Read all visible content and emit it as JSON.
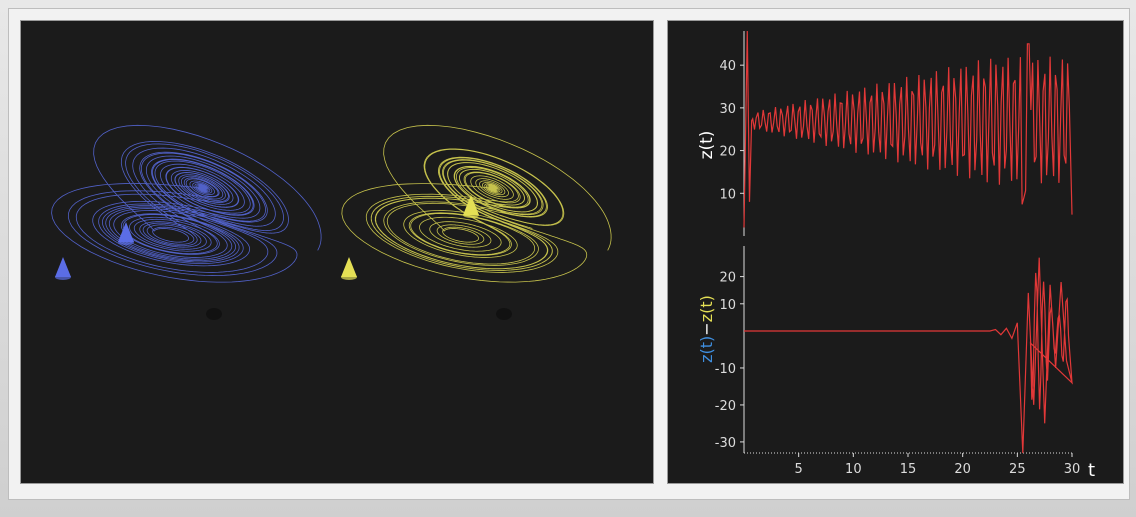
{
  "chart_data": [
    {
      "type": "scatter",
      "description_free": true,
      "series": [
        {
          "color": "#5e70e8"
        },
        {
          "color": "#e8e25a"
        }
      ]
    },
    {
      "type": "line",
      "ylabel": "z(t)",
      "xlim": [
        0,
        30
      ],
      "ylim": [
        0,
        48
      ],
      "yticks": [
        "10",
        "20",
        "30",
        "40"
      ],
      "series": [
        {
          "color": "#e23a3a",
          "x": [
            0,
            0.3,
            0.5,
            1,
            2,
            3,
            4,
            5,
            6,
            7,
            8,
            9,
            10,
            11,
            12,
            13,
            14,
            15,
            16,
            17,
            18,
            19,
            20,
            21,
            22,
            23,
            24,
            25,
            25.5,
            26,
            27,
            28,
            29,
            30
          ],
          "values": [
            2,
            48,
            27,
            28,
            26,
            29,
            27,
            30,
            26,
            31,
            25,
            32,
            24,
            33,
            23,
            35,
            21,
            37,
            19,
            39,
            17,
            40,
            15,
            42,
            13,
            41,
            14,
            44,
            6,
            38,
            12,
            40,
            10,
            5
          ]
        }
      ]
    },
    {
      "type": "line",
      "ylabel": "z(t)−z(t)",
      "xlabel": "t",
      "xlim": [
        0,
        30
      ],
      "ylim": [
        -33,
        30
      ],
      "xticks": [
        "5",
        "10",
        "15",
        "20",
        "25",
        "30"
      ],
      "yticks": [
        "20",
        "10",
        "-10",
        "-20",
        "-30"
      ],
      "series": [
        {
          "color": "#e23a3a",
          "x": [
            0,
            5,
            10,
            15,
            20,
            22,
            23,
            23.5,
            24,
            24.5,
            25,
            25.5,
            26,
            26.5,
            27,
            27.5,
            28,
            28.5,
            29,
            29.5,
            30
          ],
          "values": [
            0,
            0,
            0,
            0,
            0,
            0,
            0.5,
            -1,
            1,
            -2,
            3,
            -33,
            14,
            -20,
            27,
            -25,
            17,
            -10,
            18,
            -8,
            -14
          ]
        }
      ]
    }
  ],
  "labels": {
    "top_ylabel": "z(t)",
    "bottom_ylabel_a": "z(t)",
    "bottom_ylabel_sep": "−",
    "bottom_ylabel_b": "z(t)",
    "xlabel": "t",
    "xticks": [
      "5",
      "10",
      "15",
      "20",
      "25",
      "30"
    ],
    "top_yticks": [
      "40",
      "30",
      "20",
      "10"
    ],
    "bottom_yticks": [
      "20",
      "10",
      "-10",
      "-20",
      "-30"
    ]
  },
  "colors": {
    "blue": "#5b6de6",
    "yellow": "#e4df55",
    "red": "#e23838",
    "axis": "#e6e6e6"
  }
}
